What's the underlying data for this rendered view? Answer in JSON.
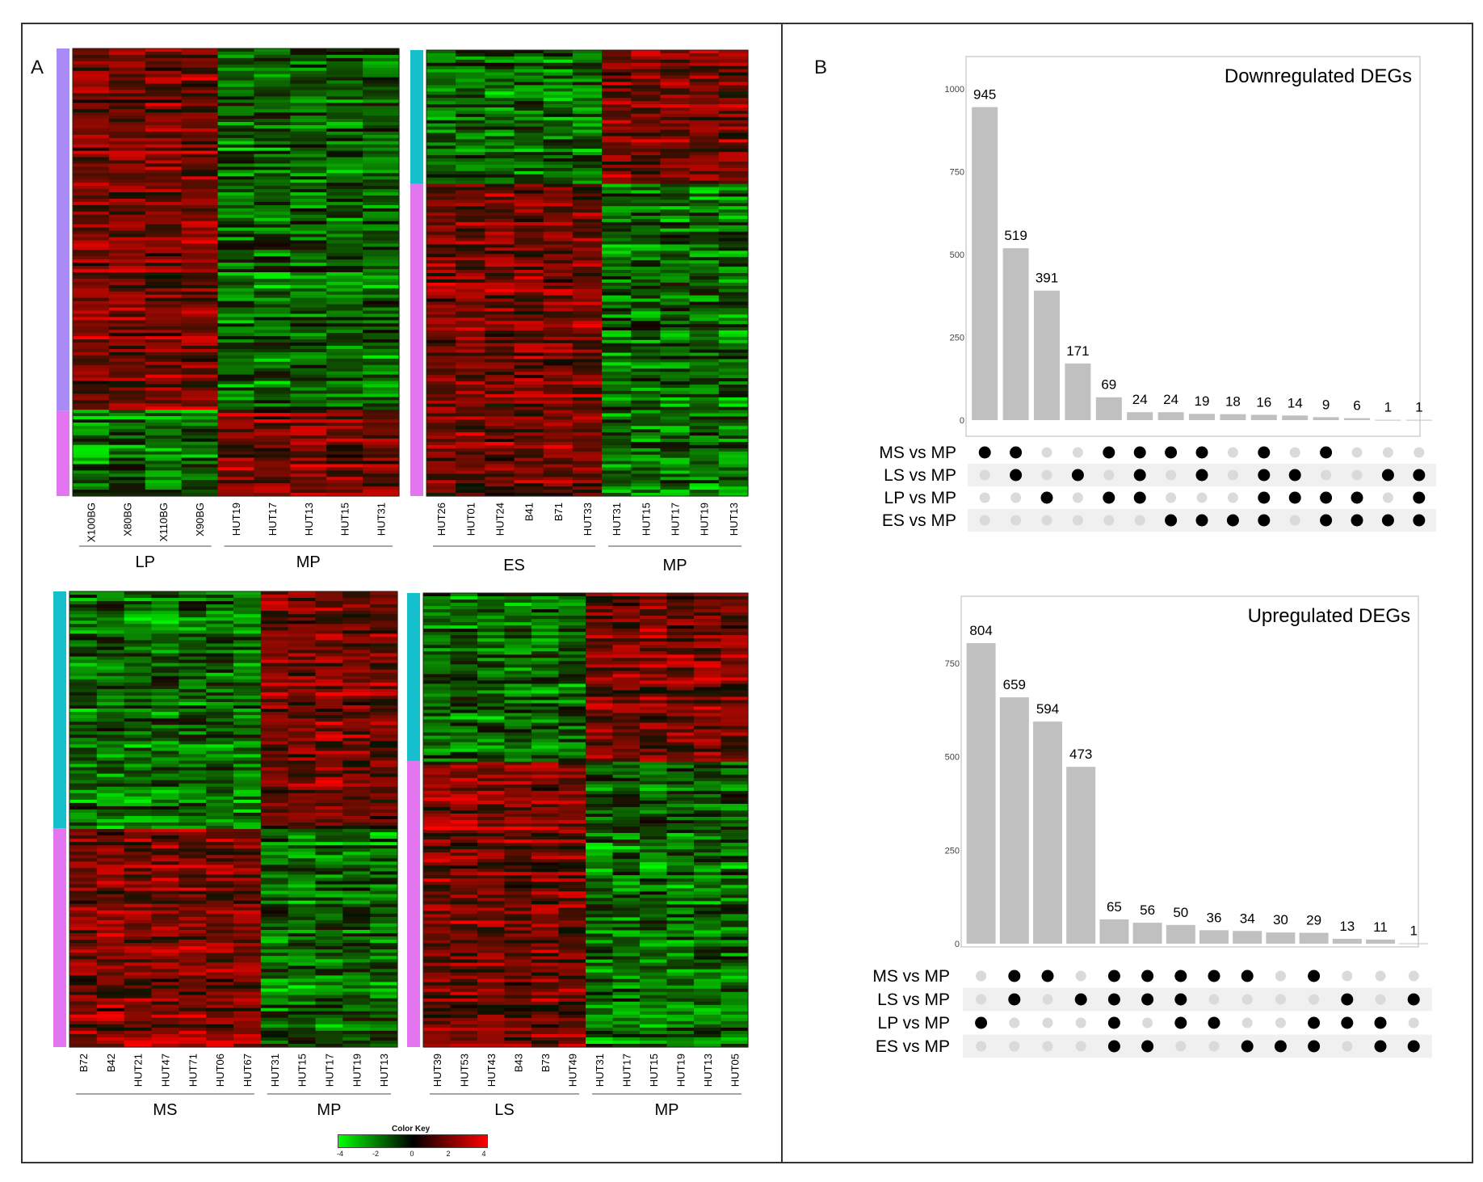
{
  "panels": {
    "a": "A",
    "b": "B"
  },
  "color_key": {
    "title": "Color Key",
    "ticks": [
      "-4",
      "-2",
      "0",
      "2",
      "4"
    ],
    "low_color": "#00ff00",
    "mid_color": "#000000",
    "high_color": "#ff0000"
  },
  "row_group_colors": {
    "teal": "#16bfcc",
    "magenta": "#e475f0",
    "violet": "#a98bf7"
  },
  "chart_data": [
    {
      "type": "heatmap",
      "id": "LP_vs_MP",
      "row_groups": [
        {
          "color": "violet",
          "fraction": 0.81
        },
        {
          "color": "magenta",
          "fraction": 0.19
        }
      ],
      "columns": [
        "X100BG",
        "X80BG",
        "X110BG",
        "X90BG",
        "HUT19",
        "HUT17",
        "HUT13",
        "HUT15",
        "HUT31"
      ],
      "groups": [
        {
          "label": "LP",
          "count": 4
        },
        {
          "label": "MP",
          "count": 5
        }
      ],
      "pattern": [
        [
          "red",
          "green"
        ],
        [
          "green",
          "red"
        ]
      ],
      "color_scale": [
        -4,
        4
      ]
    },
    {
      "type": "heatmap",
      "id": "ES_vs_MP",
      "row_groups": [
        {
          "color": "teal",
          "fraction": 0.3
        },
        {
          "color": "magenta",
          "fraction": 0.7
        }
      ],
      "columns": [
        "HUT26",
        "HUT01",
        "HUT24",
        "B41",
        "B71",
        "HUT33",
        "HUT31",
        "HUT15",
        "HUT17",
        "HUT19",
        "HUT13"
      ],
      "groups": [
        {
          "label": "ES",
          "count": 6
        },
        {
          "label": "MP",
          "count": 5
        }
      ],
      "pattern": [
        [
          "green",
          "red"
        ],
        [
          "red",
          "green"
        ]
      ],
      "color_scale": [
        -4,
        4
      ]
    },
    {
      "type": "heatmap",
      "id": "MS_vs_MP",
      "row_groups": [
        {
          "color": "teal",
          "fraction": 0.52
        },
        {
          "color": "magenta",
          "fraction": 0.48
        }
      ],
      "columns": [
        "B72",
        "B42",
        "HUT21",
        "HUT47",
        "HUT71",
        "HUT06",
        "HUT67",
        "HUT31",
        "HUT15",
        "HUT17",
        "HUT19",
        "HUT13"
      ],
      "groups": [
        {
          "label": "MS",
          "count": 7
        },
        {
          "label": "MP",
          "count": 5
        }
      ],
      "pattern": [
        [
          "green",
          "red"
        ],
        [
          "red",
          "green"
        ]
      ],
      "color_scale": [
        -4,
        4
      ]
    },
    {
      "type": "heatmap",
      "id": "LS_vs_MP",
      "row_groups": [
        {
          "color": "teal",
          "fraction": 0.37
        },
        {
          "color": "magenta",
          "fraction": 0.63
        }
      ],
      "columns": [
        "HUT39",
        "HUT53",
        "HUT43",
        "B43",
        "B73",
        "HUT49",
        "HUT31",
        "HUT17",
        "HUT15",
        "HUT19",
        "HUT13",
        "HUT05"
      ],
      "groups": [
        {
          "label": "LS",
          "count": 6
        },
        {
          "label": "MP",
          "count": 6
        }
      ],
      "pattern": [
        [
          "green",
          "red"
        ],
        [
          "red",
          "green"
        ]
      ],
      "color_scale": [
        -4,
        4
      ]
    },
    {
      "type": "bar",
      "subtype": "upset",
      "title": "Downregulated DEGs",
      "ylim": [
        0,
        1000
      ],
      "yticks": [
        0,
        250,
        500,
        750,
        1000
      ],
      "values": [
        945,
        519,
        391,
        171,
        69,
        24,
        24,
        19,
        18,
        16,
        14,
        9,
        6,
        1,
        1
      ],
      "sets": [
        "MS vs MP",
        "LS vs MP",
        "LP vs MP",
        "ES vs MP"
      ],
      "membership": [
        [
          1,
          1,
          0,
          0,
          1,
          1,
          1,
          1,
          0,
          1,
          0,
          1,
          0,
          0,
          0
        ],
        [
          0,
          1,
          0,
          1,
          0,
          1,
          0,
          1,
          0,
          1,
          1,
          0,
          0,
          1,
          1
        ],
        [
          0,
          0,
          1,
          0,
          1,
          1,
          0,
          0,
          0,
          1,
          1,
          1,
          1,
          0,
          1
        ],
        [
          0,
          0,
          0,
          0,
          0,
          0,
          1,
          1,
          1,
          1,
          0,
          1,
          1,
          1,
          1
        ]
      ]
    },
    {
      "type": "bar",
      "subtype": "upset",
      "title": "Upregulated DEGs",
      "ylim": [
        0,
        804
      ],
      "yticks": [
        0,
        250,
        500,
        750
      ],
      "values": [
        804,
        659,
        594,
        473,
        65,
        56,
        50,
        36,
        34,
        30,
        29,
        13,
        11,
        1
      ],
      "sets": [
        "MS vs MP",
        "LS vs MP",
        "LP vs MP",
        "ES vs MP"
      ],
      "membership": [
        [
          0,
          1,
          1,
          0,
          1,
          1,
          1,
          1,
          1,
          0,
          1,
          0,
          0,
          0
        ],
        [
          0,
          1,
          0,
          1,
          1,
          1,
          1,
          0,
          0,
          0,
          0,
          1,
          0,
          1
        ],
        [
          1,
          0,
          0,
          0,
          1,
          0,
          1,
          1,
          0,
          0,
          1,
          1,
          1,
          0
        ],
        [
          0,
          0,
          0,
          0,
          1,
          1,
          0,
          0,
          1,
          1,
          1,
          0,
          1,
          1
        ]
      ]
    }
  ]
}
